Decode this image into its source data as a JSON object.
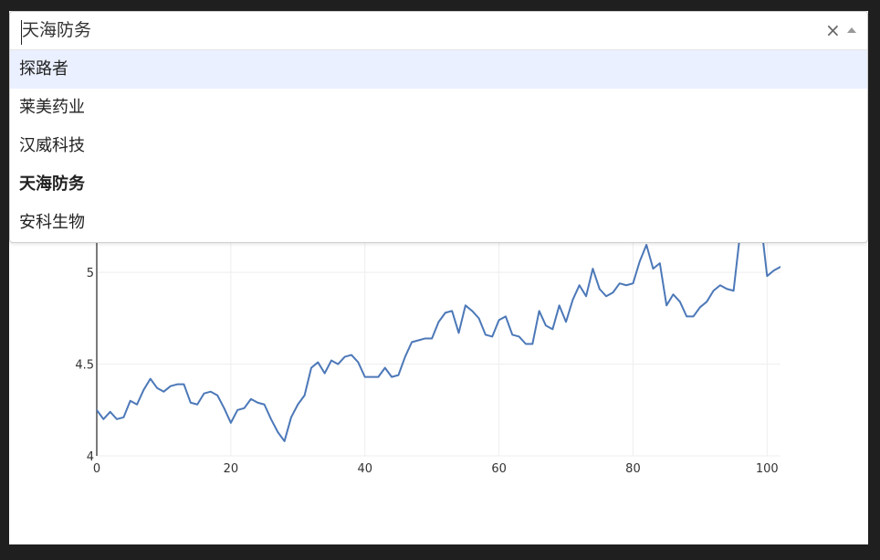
{
  "dropdown": {
    "selected_value": "天海防务",
    "clear_icon": "×",
    "options": [
      {
        "label": "探路者",
        "focused": true,
        "selected": false
      },
      {
        "label": "莱美药业",
        "focused": false,
        "selected": false
      },
      {
        "label": "汉威科技",
        "focused": false,
        "selected": false
      },
      {
        "label": "天海防务",
        "focused": false,
        "selected": true
      },
      {
        "label": "安科生物",
        "focused": false,
        "selected": false
      }
    ]
  },
  "chart_data": {
    "type": "line",
    "x": [
      0,
      1,
      2,
      3,
      4,
      5,
      6,
      7,
      8,
      9,
      10,
      11,
      12,
      13,
      14,
      15,
      16,
      17,
      18,
      19,
      20,
      21,
      22,
      23,
      24,
      25,
      26,
      27,
      28,
      29,
      30,
      31,
      32,
      33,
      34,
      35,
      36,
      37,
      38,
      39,
      40,
      41,
      42,
      43,
      44,
      45,
      46,
      47,
      48,
      49,
      50,
      51,
      52,
      53,
      54,
      55,
      56,
      57,
      58,
      59,
      60,
      61,
      62,
      63,
      64,
      65,
      66,
      67,
      68,
      69,
      70,
      71,
      72,
      73,
      74,
      75,
      76,
      77,
      78,
      79,
      80,
      81,
      82,
      83,
      84,
      85,
      86,
      87,
      88,
      89,
      90,
      91,
      92,
      93,
      94,
      95,
      96,
      97,
      98,
      99,
      100,
      101,
      102
    ],
    "y": [
      4.25,
      4.2,
      4.24,
      4.2,
      4.21,
      4.3,
      4.28,
      4.36,
      4.42,
      4.37,
      4.35,
      4.38,
      4.39,
      4.39,
      4.29,
      4.28,
      4.34,
      4.35,
      4.33,
      4.26,
      4.18,
      4.25,
      4.26,
      4.31,
      4.29,
      4.28,
      4.2,
      4.13,
      4.08,
      4.21,
      4.28,
      4.33,
      4.48,
      4.51,
      4.45,
      4.52,
      4.5,
      4.54,
      4.55,
      4.51,
      4.43,
      4.43,
      4.43,
      4.48,
      4.43,
      4.44,
      4.54,
      4.62,
      4.63,
      4.64,
      4.64,
      4.73,
      4.78,
      4.79,
      4.67,
      4.82,
      4.79,
      4.75,
      4.66,
      4.65,
      4.74,
      4.76,
      4.66,
      4.65,
      4.61,
      4.61,
      4.79,
      4.71,
      4.69,
      4.82,
      4.73,
      4.85,
      4.93,
      4.87,
      5.02,
      4.91,
      4.87,
      4.89,
      4.94,
      4.93,
      4.94,
      5.06,
      5.15,
      5.02,
      5.05,
      4.82,
      4.88,
      4.84,
      4.76,
      4.76,
      4.81,
      4.84,
      4.9,
      4.93,
      4.91,
      4.9,
      5.22,
      5.6,
      5.5,
      5.3,
      4.98,
      5.01,
      5.03
    ],
    "series": [],
    "title": "",
    "xlabel": "",
    "ylabel": "",
    "xlim": [
      0,
      102
    ],
    "ylim": [
      4,
      5.2
    ],
    "x_ticks": [
      0,
      20,
      40,
      60,
      80,
      100
    ],
    "y_ticks": [
      4,
      4.5,
      5
    ],
    "grid": true,
    "line_color": "#4c78b8"
  }
}
